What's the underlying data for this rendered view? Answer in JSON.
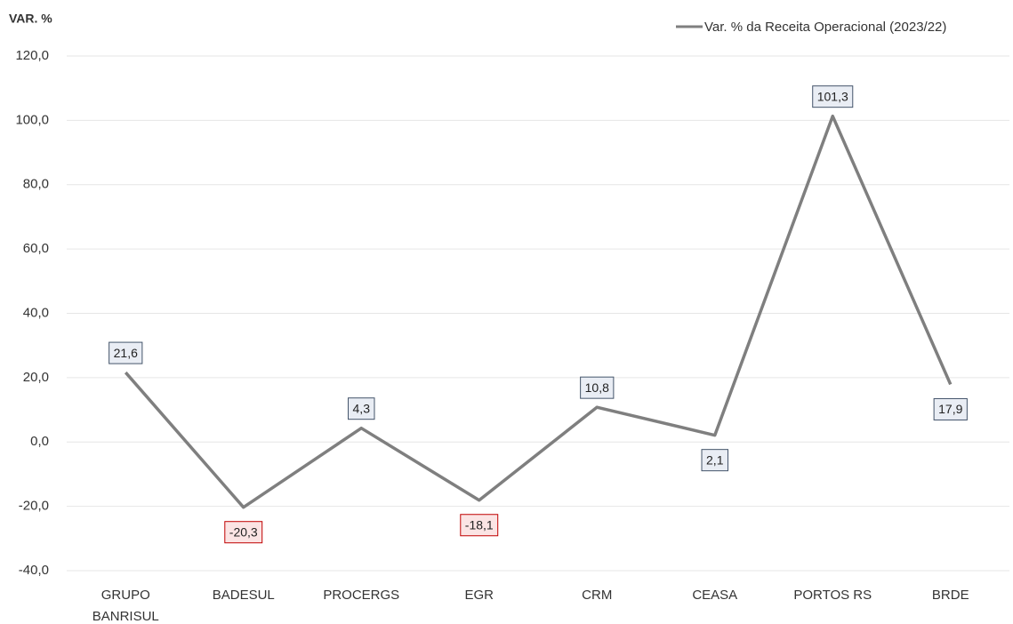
{
  "chart_data": {
    "type": "line",
    "y_axis_title": "VAR. %",
    "categories": [
      "GRUPO BANRISUL",
      "BADESUL",
      "PROCERGS",
      "EGR",
      "CRM",
      "CEASA",
      "PORTOS RS",
      "BRDE"
    ],
    "series": [
      {
        "name": "Var. % da Receita Operacional (2023/22)",
        "color": "#7f7f7f",
        "values": [
          21.6,
          -20.3,
          4.3,
          -18.1,
          10.8,
          2.1,
          101.3,
          17.9
        ],
        "value_labels": [
          "21,6",
          "-20,3",
          "4,3",
          "-18,1",
          "10,8",
          "2,1",
          "101,3",
          "17,9"
        ]
      }
    ],
    "ylim": [
      -40,
      120
    ],
    "yticks": [
      {
        "value": -40,
        "label": "-40,0"
      },
      {
        "value": -20,
        "label": "-20,0"
      },
      {
        "value": 0,
        "label": "0,0"
      },
      {
        "value": 20,
        "label": "20,0"
      },
      {
        "value": 40,
        "label": "40,0"
      },
      {
        "value": 60,
        "label": "60,0"
      },
      {
        "value": 80,
        "label": "80,0"
      },
      {
        "value": 100,
        "label": "100,0"
      },
      {
        "value": 120,
        "label": "120,0"
      }
    ],
    "grid": true,
    "legend": "top-right"
  }
}
